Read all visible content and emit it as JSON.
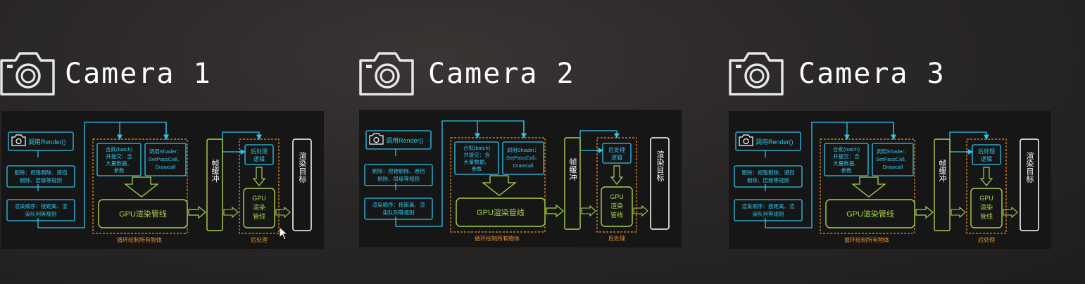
{
  "colors": {
    "cyan": "#2fc4ea",
    "green": "#a7d24c",
    "orange": "#e88f2c",
    "white": "#ffffff",
    "panel_bg": "#161616"
  },
  "icons": {
    "camera": "camera-icon",
    "cursor": "mouse-pointer-icon"
  },
  "cameras": [
    {
      "title": "Camera 1"
    },
    {
      "title": "Camera 2"
    },
    {
      "title": "Camera 3"
    }
  ],
  "diagram": {
    "render_call": "调用Render()",
    "cull_line1": "剔除：视锥剔除、遮挡",
    "cull_line2": "剔除、层级等规则",
    "order_line1": "渲染顺序：按距离、渲",
    "order_line2": "染队列等规则",
    "batch_line1": "合批(batch)",
    "batch_line2": "并提交：含",
    "batch_line3": "大量数据、",
    "batch_line4": "参数",
    "shader_line1": "调用Shader：",
    "shader_line2": "SetPassCall、",
    "shader_line3": "Drawcall",
    "gpu_pipeline": "GPU渲染管线",
    "frame_buffer": "帧缓冲",
    "post_logic_line1": "后处理",
    "post_logic_line2": "逻辑",
    "post_gpu_line1": "GPU",
    "post_gpu_line2": "渲染",
    "post_gpu_line3": "管线",
    "render_target": "渲染目标",
    "loop_caption": "循环绘制所有物体",
    "post_caption": "后处理"
  }
}
